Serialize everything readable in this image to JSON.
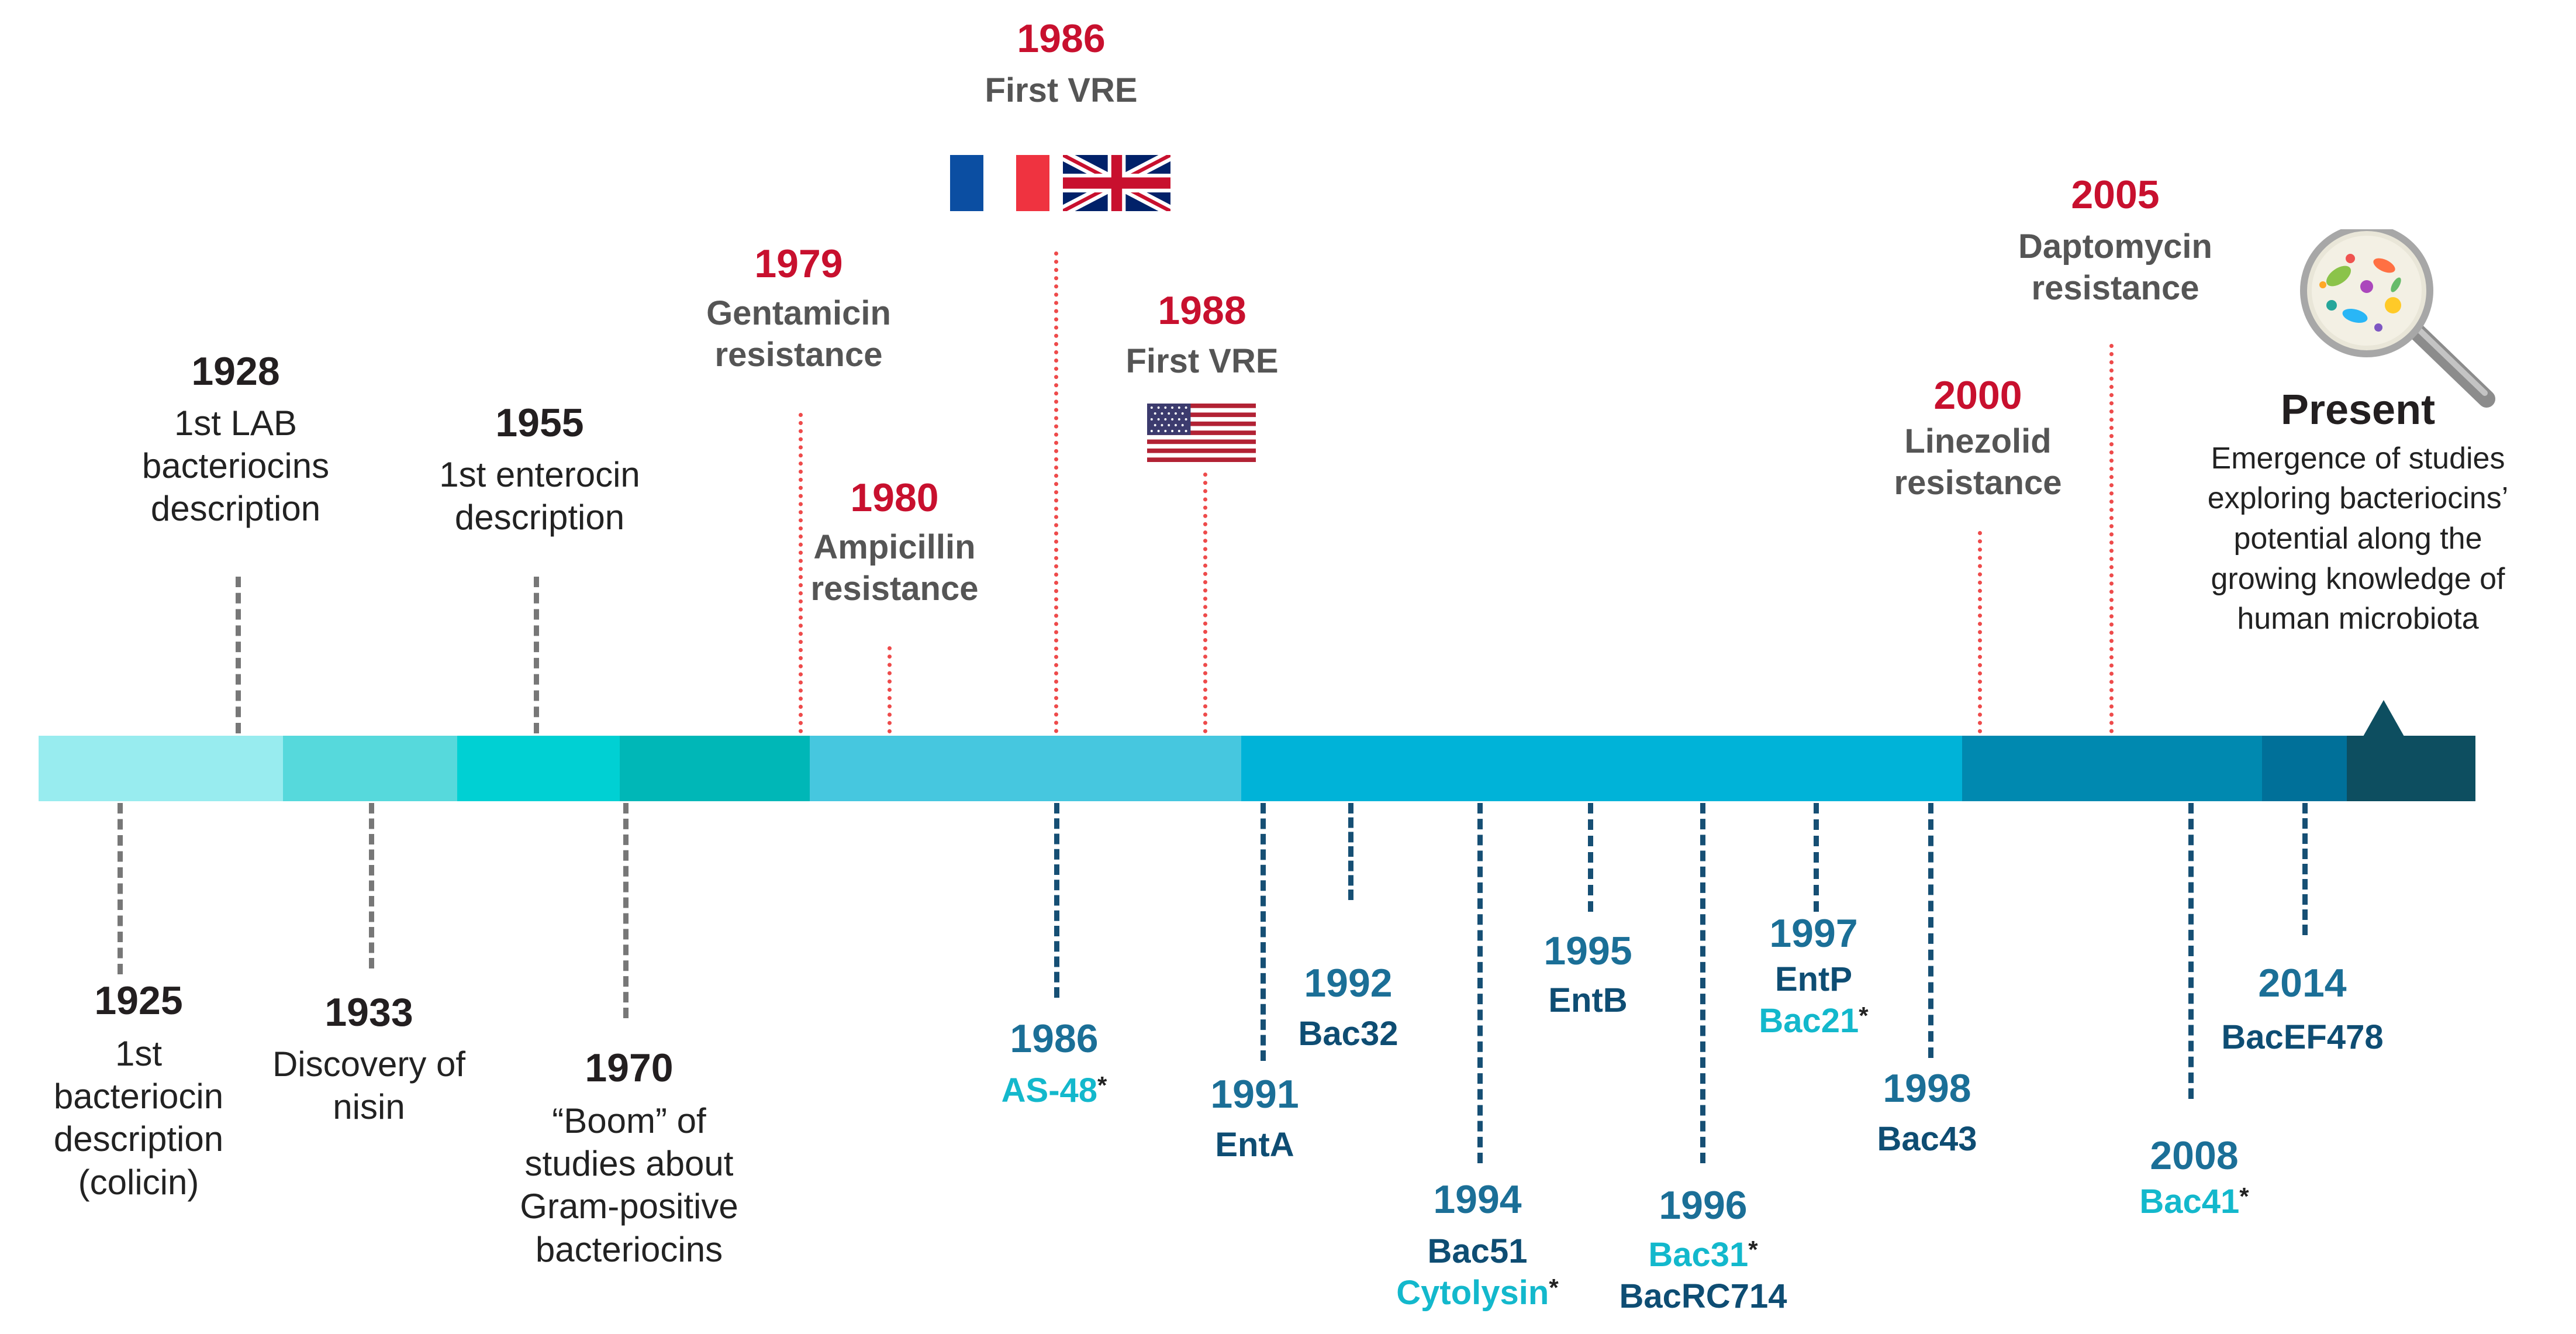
{
  "colors": {
    "bar": [
      "#98ecef",
      "#56d9dc",
      "#00d0d3",
      "#00b7b7",
      "#46c7df",
      "#00b3d8",
      "#0089b0",
      "#007099",
      "#0d4e60"
    ],
    "red_year": "#c8102e",
    "blue_year": "#1b6f97",
    "navy_label": "#0e4d73",
    "cyan_label": "#13b8cc",
    "gray_line": "#777777",
    "red_line": "#ee4b4b",
    "blue_line": "#164f74"
  },
  "top_events": [
    {
      "year": "1928",
      "line1": "1st LAB",
      "line2": "bacteriocins",
      "line3": "description"
    },
    {
      "year": "1955",
      "line1": "1st enterocin",
      "line2": "description"
    }
  ],
  "resistance_events": [
    {
      "year": "1979",
      "line1": "Gentamicin",
      "line2": "resistance"
    },
    {
      "year": "1980",
      "line1": "Ampicillin",
      "line2": "resistance"
    },
    {
      "year": "1986",
      "line1": "First VRE"
    },
    {
      "year": "1988",
      "line1": "First VRE"
    },
    {
      "year": "2000",
      "line1": "Linezolid",
      "line2": "resistance"
    },
    {
      "year": "2005",
      "line1": "Daptomycin",
      "line2": "resistance"
    }
  ],
  "present": {
    "title": "Present",
    "lines": [
      "Emergence of studies",
      "exploring bacteriocins’",
      "potential along the",
      "growing knowledge of",
      "human microbiota"
    ]
  },
  "bottom_history": [
    {
      "year": "1925",
      "line1": "1st",
      "line2": "bacteriocin",
      "line3": "description",
      "line4": "(colicin)"
    },
    {
      "year": "1933",
      "line1": "Discovery of",
      "line2": "nisin"
    },
    {
      "year": "1970",
      "line1": "“Boom” of",
      "line2": "studies about",
      "line3": "Gram-positive",
      "line4": "bacteriocins"
    }
  ],
  "bacteriocins": [
    {
      "year": "1986",
      "a": "AS-48",
      "star": "*"
    },
    {
      "year": "1991",
      "a": "EntA"
    },
    {
      "year": "1992",
      "a": "Bac32"
    },
    {
      "year": "1994",
      "a": "Bac51",
      "b": "Cytolysin",
      "star": "*"
    },
    {
      "year": "1995",
      "a": "EntB"
    },
    {
      "year": "1996",
      "a": "Bac31",
      "star": "*",
      "b": "BacRC714"
    },
    {
      "year": "1997",
      "a": "EntP",
      "b": "Bac21",
      "star": "*"
    },
    {
      "year": "1998",
      "a": "Bac43"
    },
    {
      "year": "2008",
      "a": "Bac41",
      "star": "*"
    },
    {
      "year": "2014",
      "a": "BacEF478"
    }
  ],
  "icons": [
    "flag-france-icon",
    "flag-uk-icon",
    "flag-usa-icon",
    "magnifier-microbes-icon",
    "triangle-marker-icon"
  ]
}
